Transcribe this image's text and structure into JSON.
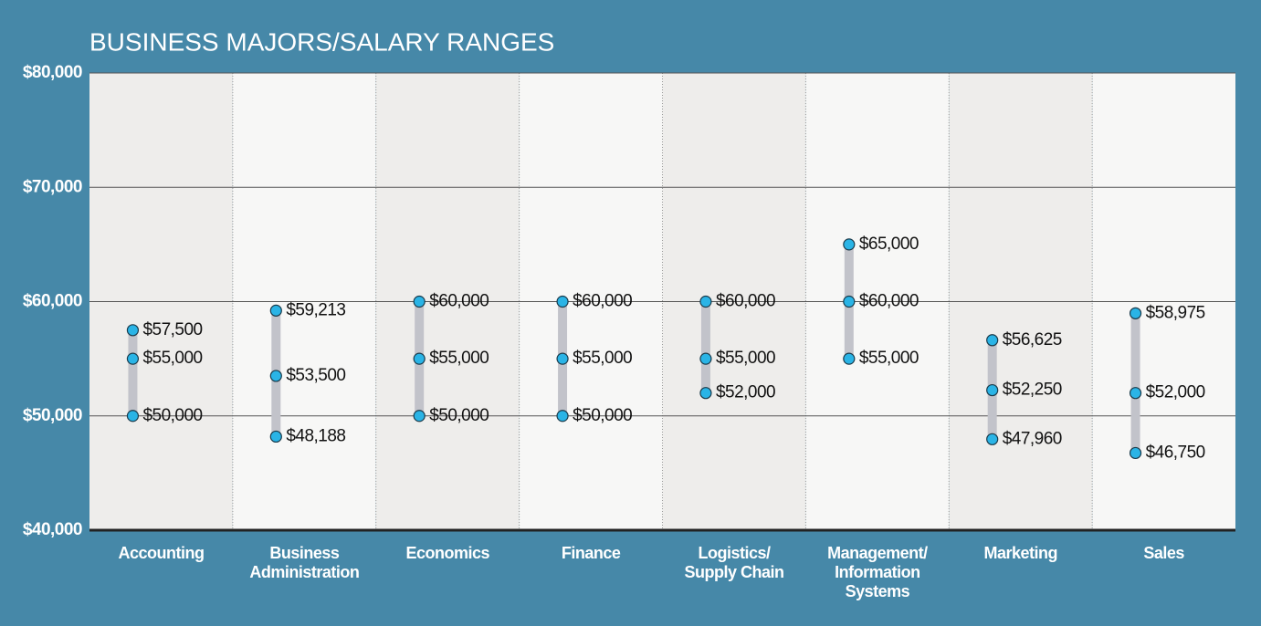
{
  "chart_data": {
    "type": "range",
    "title": "BUSINESS MAJORS/SALARY RANGES",
    "categories": [
      "Accounting",
      "Business\nAdministration",
      "Economics",
      "Finance",
      "Logistics/\nSupply Chain",
      "Management/\nInformation\nSystems",
      "Marketing",
      "Sales"
    ],
    "series": [
      {
        "color": "#2ab4e6",
        "values": [
          57500,
          59213,
          60000,
          60000,
          60000,
          65000,
          56625,
          58975
        ],
        "value_labels": [
          "$57,500",
          "$59,213",
          "$60,000",
          "$60,000",
          "$60,000",
          "$65,000",
          "$56,625",
          "$58,975"
        ]
      },
      {
        "color": "#2ab4e6",
        "values": [
          55000,
          53500,
          55000,
          55000,
          55000,
          60000,
          52250,
          52000
        ],
        "value_labels": [
          "$55,000",
          "$53,500",
          "$55,000",
          "$55,000",
          "$55,000",
          "$60,000",
          "$52,250",
          "$52,000"
        ]
      },
      {
        "color": "#2ab4e6",
        "values": [
          50000,
          48188,
          50000,
          50000,
          52000,
          55000,
          47960,
          46750
        ],
        "value_labels": [
          "$50,000",
          "$48,188",
          "$50,000",
          "$50,000",
          "$52,000",
          "$55,000",
          "$47,960",
          "$46,750"
        ]
      }
    ],
    "range_color": "#c2c3ca",
    "ylim": [
      40000,
      80000
    ],
    "yticks": [
      {
        "value": 40000,
        "label": "$40,000"
      },
      {
        "value": 50000,
        "label": "$50,000"
      },
      {
        "value": 60000,
        "label": "$60,000"
      },
      {
        "value": 70000,
        "label": "$70,000"
      },
      {
        "value": 80000,
        "label": "$80,000"
      }
    ],
    "grid": true
  }
}
